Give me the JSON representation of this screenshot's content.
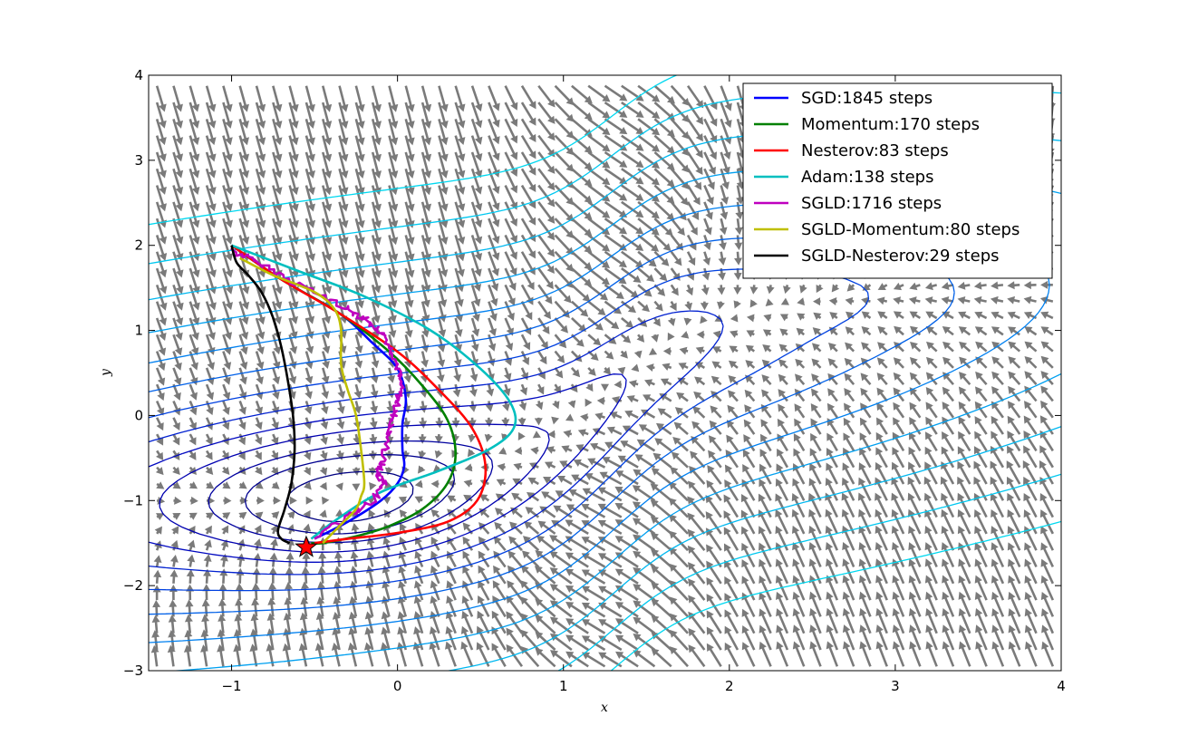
{
  "chart_data": {
    "type": "line",
    "title": "",
    "xlabel": "x",
    "ylabel": "y",
    "xlim": [
      -1.5,
      4
    ],
    "ylim": [
      -3,
      4
    ],
    "xticks": [
      "−1",
      "0",
      "1",
      "2",
      "3",
      "4"
    ],
    "xtick_values": [
      -1,
      0,
      1,
      2,
      3,
      4
    ],
    "yticks": [
      "−3",
      "−2",
      "−1",
      "0",
      "1",
      "2",
      "3",
      "4"
    ],
    "ytick_values": [
      -3,
      -2,
      -1,
      0,
      1,
      2,
      3,
      4
    ],
    "grid": false,
    "legend_position": "top-right",
    "background_layers": [
      "gradient-quiver-field",
      "loss-contours"
    ],
    "start_point": [
      -1.0,
      2.0
    ],
    "target_marker": {
      "shape": "star",
      "color": "#ff0000",
      "x": -0.55,
      "y": -1.55
    },
    "series": [
      {
        "name": "SGD:1845 steps",
        "color": "#0000ff",
        "x": [
          -1.0,
          -0.7,
          -0.35,
          -0.15,
          0.0,
          0.05,
          0.03,
          0.03,
          0.04,
          0.0,
          -0.1,
          -0.3,
          -0.5
        ],
        "y": [
          2.0,
          1.6,
          1.2,
          0.85,
          0.55,
          0.2,
          -0.1,
          -0.4,
          -0.6,
          -0.8,
          -1.0,
          -1.25,
          -1.45
        ]
      },
      {
        "name": "Momentum:170 steps",
        "color": "#008000",
        "x": [
          -1.0,
          -0.7,
          -0.35,
          -0.05,
          0.15,
          0.3,
          0.35,
          0.3,
          0.15,
          -0.05,
          -0.25,
          -0.45,
          -0.52
        ],
        "y": [
          2.0,
          1.6,
          1.2,
          0.75,
          0.35,
          -0.05,
          -0.45,
          -0.8,
          -1.1,
          -1.3,
          -1.42,
          -1.5,
          -1.5
        ]
      },
      {
        "name": "Nesterov:83 steps",
        "color": "#ff0000",
        "x": [
          -1.0,
          -0.7,
          -0.35,
          0.0,
          0.25,
          0.45,
          0.53,
          0.48,
          0.3,
          0.0,
          -0.3,
          -0.5
        ],
        "y": [
          2.0,
          1.6,
          1.2,
          0.75,
          0.3,
          -0.15,
          -0.6,
          -1.0,
          -1.25,
          -1.38,
          -1.45,
          -1.5
        ]
      },
      {
        "name": "Adam:138 steps",
        "color": "#00bfbf",
        "x": [
          -1.0,
          -0.6,
          -0.2,
          0.2,
          0.5,
          0.68,
          0.7,
          0.55,
          0.25,
          -0.1,
          -0.35,
          -0.52
        ],
        "y": [
          2.0,
          1.7,
          1.4,
          1.0,
          0.55,
          0.15,
          -0.15,
          -0.4,
          -0.65,
          -0.9,
          -1.2,
          -1.45
        ]
      },
      {
        "name": "SGLD:1716 steps",
        "color": "#bf00bf",
        "x": [
          -1.0,
          -0.85,
          -0.65,
          -0.45,
          -0.3,
          -0.2,
          -0.12,
          -0.05,
          0.0,
          0.02,
          0.0,
          -0.02,
          -0.05,
          -0.08,
          -0.1,
          -0.12,
          -0.07,
          -0.15,
          -0.3,
          -0.5
        ],
        "y": [
          1.95,
          1.8,
          1.6,
          1.4,
          1.25,
          1.15,
          1.0,
          0.85,
          0.6,
          0.35,
          0.15,
          0.0,
          -0.2,
          -0.45,
          -0.6,
          -0.7,
          -0.8,
          -1.0,
          -1.2,
          -1.45
        ]
      },
      {
        "name": "SGLD-Momentum:80 steps",
        "color": "#bfbf00",
        "x": [
          -0.95,
          -0.75,
          -0.5,
          -0.38,
          -0.34,
          -0.34,
          -0.3,
          -0.25,
          -0.22,
          -0.2,
          -0.22,
          -0.25,
          -0.35,
          -0.45
        ],
        "y": [
          1.85,
          1.65,
          1.45,
          1.25,
          1.0,
          0.6,
          0.3,
          0.0,
          -0.4,
          -0.8,
          -0.95,
          -1.1,
          -1.3,
          -1.5
        ]
      },
      {
        "name": "SGLD-Nesterov:29 steps",
        "color": "#000000",
        "x": [
          -1.0,
          -0.97,
          -0.9,
          -0.82,
          -0.75,
          -0.7,
          -0.66,
          -0.63,
          -0.62,
          -0.64,
          -0.68,
          -0.72,
          -0.7,
          -0.65
        ],
        "y": [
          2.0,
          1.8,
          1.65,
          1.45,
          1.15,
          0.8,
          0.4,
          0.0,
          -0.4,
          -0.8,
          -1.1,
          -1.35,
          -1.45,
          -1.5
        ]
      }
    ]
  }
}
